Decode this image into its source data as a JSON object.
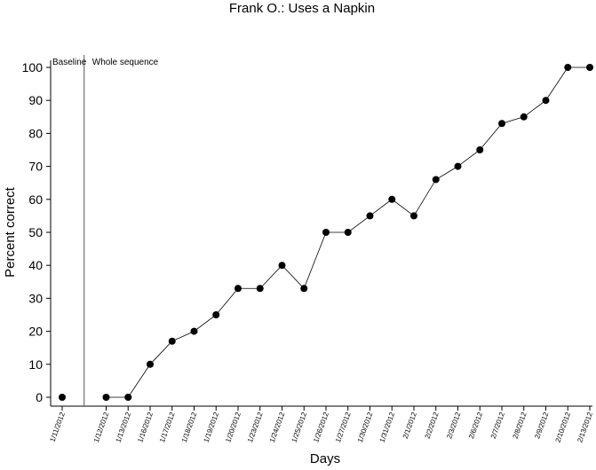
{
  "chart_data": {
    "type": "line",
    "title": "Frank O.: Uses a Napkin",
    "x_label": "Days",
    "y_label": "Percent correct",
    "annotations": [
      "Baseline",
      "Whole sequence"
    ],
    "categories": [
      "1/11/2012",
      null,
      "1/12/2012",
      "1/13/2012",
      "1/16/2012",
      "1/17/2012",
      "1/18/2012",
      "1/19/2012",
      "1/20/2012",
      "1/23/2012",
      "1/24/2012",
      "1/25/2012",
      "1/26/2012",
      "1/27/2012",
      "1/30/2012",
      "1/31/2012",
      "2/1/2012",
      "2/2/2012",
      "2/3/2012",
      "2/6/2012",
      "2/7/2012",
      "2/8/2012",
      "2/9/2012",
      "2/10/2012",
      "2/13/2012"
    ],
    "values": [
      0,
      null,
      0,
      0,
      10,
      17,
      20,
      25,
      33,
      33,
      40,
      33,
      50,
      50,
      55,
      60,
      55,
      66,
      70,
      75,
      83,
      85,
      90,
      100,
      100
    ],
    "color": "#000000",
    "ylim": [
      0,
      100
    ],
    "yticks": [
      0,
      10,
      20,
      30,
      40,
      50,
      60,
      70,
      80,
      90,
      100
    ]
  }
}
